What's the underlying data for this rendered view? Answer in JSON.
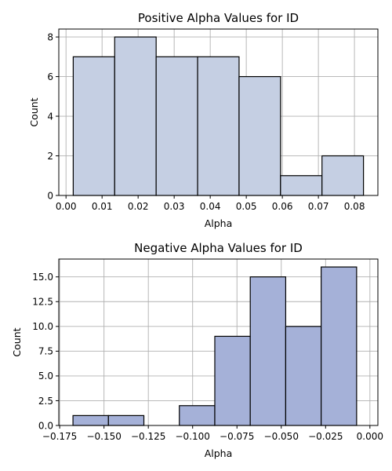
{
  "chart_data": [
    {
      "type": "bar",
      "title": "Positive Alpha Values for ID",
      "xlabel": "Alpha",
      "ylabel": "Count",
      "bin_edges": [
        0.002,
        0.0135,
        0.025,
        0.0365,
        0.048,
        0.0595,
        0.071,
        0.0825
      ],
      "values": [
        7,
        8,
        7,
        7,
        6,
        1,
        2
      ],
      "xlim": [
        -0.002,
        0.0865
      ],
      "ylim": [
        0,
        8.4
      ],
      "xticks": [
        0.0,
        0.01,
        0.02,
        0.03,
        0.04,
        0.05,
        0.06,
        0.07,
        0.08
      ],
      "xtick_labels": [
        "0.00",
        "0.01",
        "0.02",
        "0.03",
        "0.04",
        "0.05",
        "0.06",
        "0.07",
        "0.08"
      ],
      "yticks": [
        0,
        2,
        4,
        6,
        8
      ],
      "ytick_labels": [
        "0",
        "2",
        "4",
        "6",
        "8"
      ],
      "bar_color": "#c5cfe3",
      "edge_color": "#000000",
      "grid": true
    },
    {
      "type": "bar",
      "title": "Negative Alpha Values for ID",
      "xlabel": "Alpha",
      "ylabel": "Count",
      "bin_edges": [
        -0.1675,
        -0.1475,
        -0.1275,
        -0.1075,
        -0.0875,
        -0.0675,
        -0.0475,
        -0.0275,
        -0.0075
      ],
      "values": [
        1,
        1,
        0,
        2,
        9,
        15,
        10,
        16
      ],
      "xlim": [
        -0.1755,
        0.0045
      ],
      "ylim": [
        0,
        16.8
      ],
      "xticks": [
        -0.175,
        -0.15,
        -0.125,
        -0.1,
        -0.075,
        -0.05,
        -0.025,
        0.0
      ],
      "xtick_labels": [
        "−0.175",
        "−0.150",
        "−0.125",
        "−0.100",
        "−0.075",
        "−0.050",
        "−0.025",
        "0.000"
      ],
      "yticks": [
        0,
        2.5,
        5,
        7.5,
        10,
        12.5,
        15
      ],
      "ytick_labels": [
        "0.0",
        "2.5",
        "5.0",
        "7.5",
        "10.0",
        "12.5",
        "15.0"
      ],
      "bar_color": "#a5b1d8",
      "edge_color": "#000000",
      "grid": true
    }
  ],
  "colors": {
    "grid": "#b0b0b0",
    "axis": "#000000",
    "background": "#ffffff"
  }
}
